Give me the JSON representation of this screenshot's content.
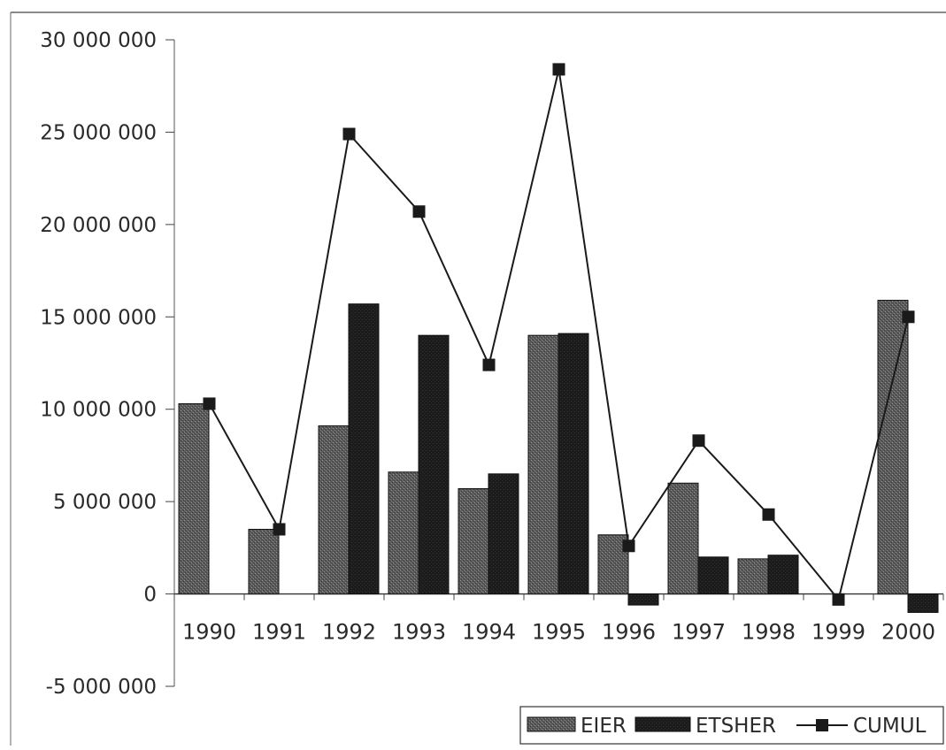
{
  "chart_data": {
    "type": "bar",
    "categories": [
      "1990",
      "1991",
      "1992",
      "1993",
      "1994",
      "1995",
      "1996",
      "1997",
      "1998",
      "1999",
      "2000"
    ],
    "series": [
      {
        "name": "EIER",
        "kind": "bar",
        "color": "#555555",
        "values": [
          10300000,
          3500000,
          9100000,
          6600000,
          5700000,
          14000000,
          3200000,
          6000000,
          1900000,
          0,
          15900000
        ]
      },
      {
        "name": "ETSHER",
        "kind": "bar",
        "color": "#1c1c1c",
        "values": [
          0,
          0,
          15700000,
          14000000,
          6500000,
          14100000,
          -600000,
          2000000,
          2100000,
          0,
          -1000000
        ]
      },
      {
        "name": "CUMUL",
        "kind": "line",
        "color": "#1a1a1a",
        "values": [
          10300000,
          3500000,
          24900000,
          20700000,
          12400000,
          28400000,
          2600000,
          8300000,
          4300000,
          -300000,
          15000000
        ]
      }
    ],
    "ylim": [
      -5000000,
      30000000
    ],
    "yticks": [
      30000000,
      25000000,
      20000000,
      15000000,
      10000000,
      5000000,
      0,
      -5000000
    ],
    "ytick_labels": [
      "30 000 000",
      "25 000 000",
      "20 000 000",
      "15 000 000",
      "10 000 000",
      "5 000 000",
      "0",
      "-5 000 000"
    ],
    "legend_position": "bottom-right",
    "grid": false
  }
}
